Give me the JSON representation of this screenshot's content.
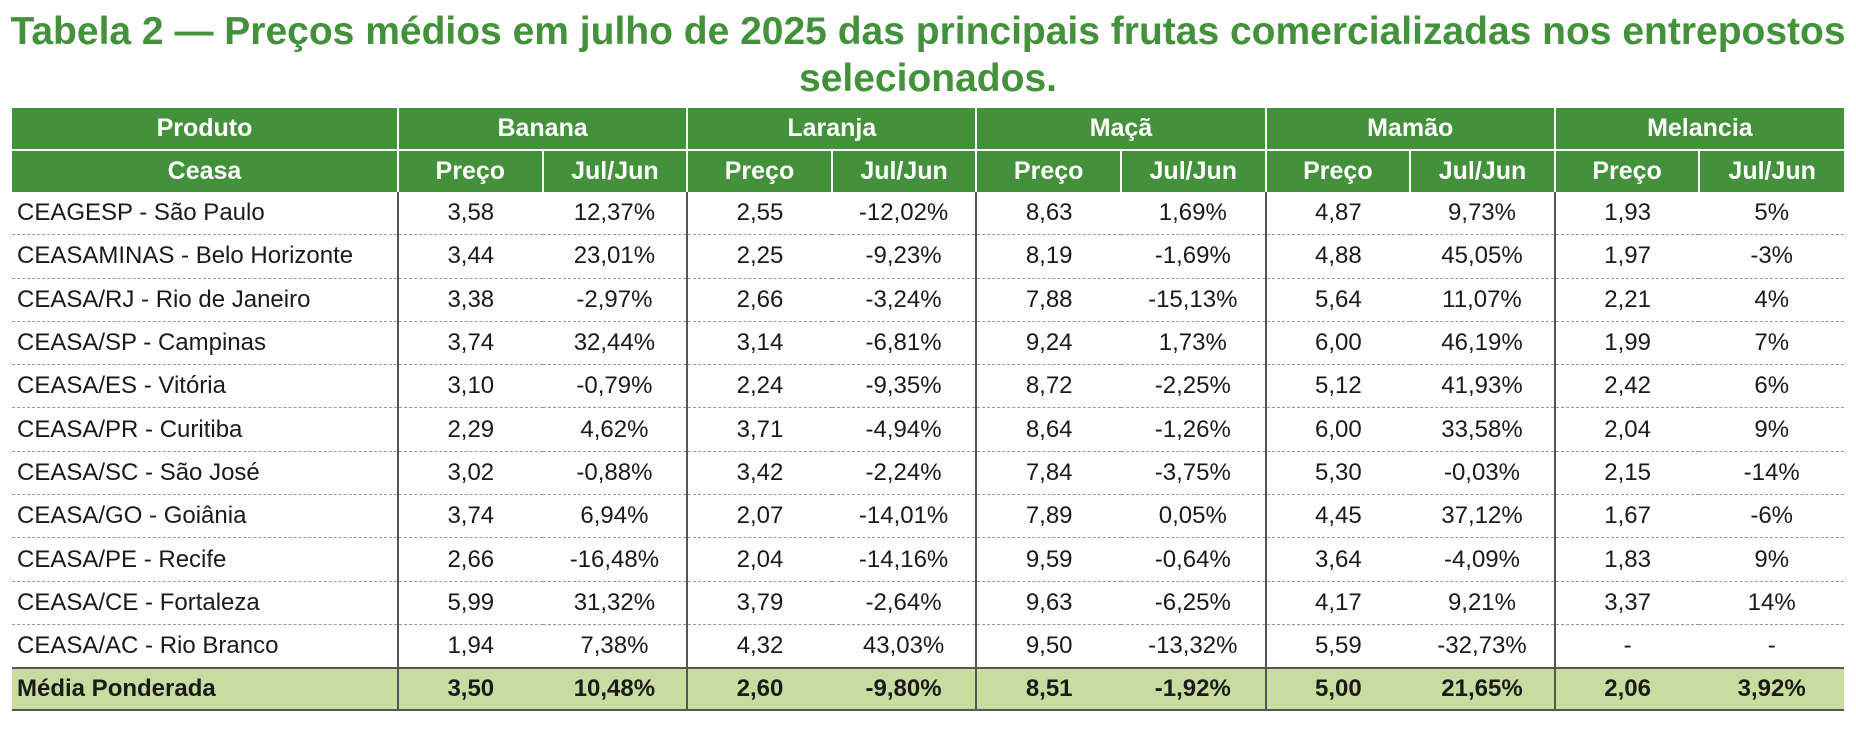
{
  "title": "Tabela 2 — Preços médios em julho de 2025 das principais frutas comercializadas nos entrepostos selecionados.",
  "colors": {
    "header_green": "#43913a",
    "title_green": "#43913a",
    "footer_green": "#c9dca0"
  },
  "headers": {
    "produto": "Produto",
    "ceasa": "Ceasa",
    "products": [
      "Banana",
      "Laranja",
      "Maçã",
      "Mamão",
      "Melancia"
    ],
    "preco": "Preço",
    "jul_jun": "Jul/Jun"
  },
  "rows": [
    {
      "ceasa": "CEAGESP - São Paulo",
      "values": [
        "3,58",
        "12,37%",
        "2,55",
        "-12,02%",
        "8,63",
        "1,69%",
        "4,87",
        "9,73%",
        "1,93",
        "5%"
      ]
    },
    {
      "ceasa": "CEASAMINAS - Belo Horizonte",
      "values": [
        "3,44",
        "23,01%",
        "2,25",
        "-9,23%",
        "8,19",
        "-1,69%",
        "4,88",
        "45,05%",
        "1,97",
        "-3%"
      ]
    },
    {
      "ceasa": "CEASA/RJ - Rio de Janeiro",
      "values": [
        "3,38",
        "-2,97%",
        "2,66",
        "-3,24%",
        "7,88",
        "-15,13%",
        "5,64",
        "11,07%",
        "2,21",
        "4%"
      ]
    },
    {
      "ceasa": "CEASA/SP - Campinas",
      "values": [
        "3,74",
        "32,44%",
        "3,14",
        "-6,81%",
        "9,24",
        "1,73%",
        "6,00",
        "46,19%",
        "1,99",
        "7%"
      ]
    },
    {
      "ceasa": "CEASA/ES - Vitória",
      "values": [
        "3,10",
        "-0,79%",
        "2,24",
        "-9,35%",
        "8,72",
        "-2,25%",
        "5,12",
        "41,93%",
        "2,42",
        "6%"
      ]
    },
    {
      "ceasa": "CEASA/PR - Curitiba",
      "values": [
        "2,29",
        "4,62%",
        "3,71",
        "-4,94%",
        "8,64",
        "-1,26%",
        "6,00",
        "33,58%",
        "2,04",
        "9%"
      ]
    },
    {
      "ceasa": "CEASA/SC - São José",
      "values": [
        "3,02",
        "-0,88%",
        "3,42",
        "-2,24%",
        "7,84",
        "-3,75%",
        "5,30",
        "-0,03%",
        "2,15",
        "-14%"
      ]
    },
    {
      "ceasa": "CEASA/GO - Goiânia",
      "values": [
        "3,74",
        "6,94%",
        "2,07",
        "-14,01%",
        "7,89",
        "0,05%",
        "4,45",
        "37,12%",
        "1,67",
        "-6%"
      ]
    },
    {
      "ceasa": "CEASA/PE - Recife",
      "values": [
        "2,66",
        "-16,48%",
        "2,04",
        "-14,16%",
        "9,59",
        "-0,64%",
        "3,64",
        "-4,09%",
        "1,83",
        "9%"
      ]
    },
    {
      "ceasa": "CEASA/CE - Fortaleza",
      "values": [
        "5,99",
        "31,32%",
        "3,79",
        "-2,64%",
        "9,63",
        "-6,25%",
        "4,17",
        "9,21%",
        "3,37",
        "14%"
      ]
    },
    {
      "ceasa": "CEASA/AC - Rio Branco",
      "values": [
        "1,94",
        "7,38%",
        "4,32",
        "43,03%",
        "9,50",
        "-13,32%",
        "5,59",
        "-32,73%",
        "-",
        "-"
      ]
    }
  ],
  "footer": {
    "label": "Média Ponderada",
    "values": [
      "3,50",
      "10,48%",
      "2,60",
      "-9,80%",
      "8,51",
      "-1,92%",
      "5,00",
      "21,65%",
      "2,06",
      "3,92%"
    ]
  }
}
